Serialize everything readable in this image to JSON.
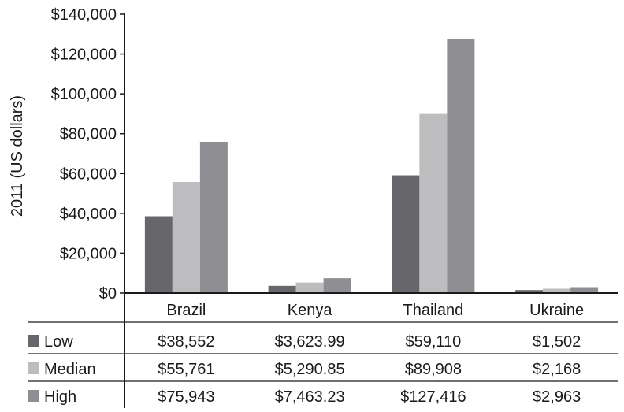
{
  "chart_data": {
    "type": "bar",
    "ylabel": "2011 (US dollars)",
    "ylim": [
      0,
      140000
    ],
    "yticks": [
      0,
      20000,
      40000,
      60000,
      80000,
      100000,
      120000,
      140000
    ],
    "ytick_labels": [
      "$0",
      "$20,000",
      "$40,000",
      "$60,000",
      "$80,000",
      "$100,000",
      "$120,000",
      "$140,000"
    ],
    "categories": [
      "Brazil",
      "Kenya",
      "Thailand",
      "Ukraine"
    ],
    "series": [
      {
        "name": "Low",
        "color": "#66666b",
        "values": [
          38552,
          3623.99,
          59110,
          1502
        ]
      },
      {
        "name": "Median",
        "color": "#bdbdbf",
        "values": [
          55761,
          5290.85,
          89908,
          2168
        ]
      },
      {
        "name": "High",
        "color": "#8f8f93",
        "values": [
          75943,
          7463.23,
          127416,
          2963
        ]
      }
    ],
    "table": {
      "rows": [
        {
          "label": "Low",
          "cells": [
            "$38,552",
            "$3,623.99",
            "$59,110",
            "$1,502"
          ]
        },
        {
          "label": "Median",
          "cells": [
            "$55,761",
            "$5,290.85",
            "$89,908",
            "$2,168"
          ]
        },
        {
          "label": "High",
          "cells": [
            "$75,943",
            "$7,463.23",
            "$127,416",
            "$2,963"
          ]
        }
      ]
    },
    "grid": false,
    "legend": "data table, left"
  }
}
